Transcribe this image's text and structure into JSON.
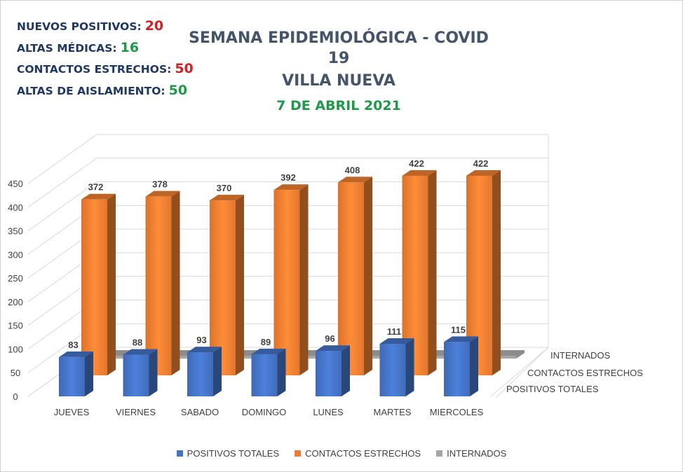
{
  "stats": [
    {
      "label": "NUEVOS POSITIVOS:",
      "value": "20",
      "color": "#d42020"
    },
    {
      "label": "ALTAS MÉDICAS:",
      "value": "16",
      "color": "#1e9a47"
    },
    {
      "label": "CONTACTOS ESTRECHOS:",
      "value": "50",
      "color": "#d42020"
    },
    {
      "label": "ALTAS DE AISLAMIENTO:",
      "value": "50",
      "color": "#1e9a47"
    }
  ],
  "title": {
    "line1": "SEMANA EPIDEMIOLÓGICA - COVID 19",
    "line2": "VILLA NUEVA",
    "line3": "7 DE ABRIL 2021"
  },
  "chart_data": {
    "type": "bar",
    "categories": [
      "JUEVES",
      "VIERNES",
      "SABADO",
      "DOMINGO",
      "LUNES",
      "MARTES",
      "MIERCOLES"
    ],
    "series": [
      {
        "name": "POSITIVOS TOTALES",
        "values": [
          83,
          88,
          93,
          89,
          96,
          111,
          115
        ],
        "color": "#4472c4"
      },
      {
        "name": "CONTACTOS ESTRECHOS",
        "values": [
          372,
          378,
          370,
          392,
          408,
          422,
          422
        ],
        "color": "#ed7d31"
      },
      {
        "name": "INTERNADOS",
        "values": [
          6,
          6,
          6,
          6,
          6,
          7,
          7
        ],
        "color": "#a5a5a5"
      }
    ],
    "depth_labels": [
      "INTERNADOS",
      "CONTACTOS ESTRECHOS",
      "POSITIVOS TOTALES"
    ],
    "yticks": [
      0,
      50,
      100,
      150,
      200,
      250,
      300,
      350,
      400,
      450
    ],
    "ylim": [
      0,
      450
    ],
    "grid": true,
    "legend_position": "bottom"
  }
}
